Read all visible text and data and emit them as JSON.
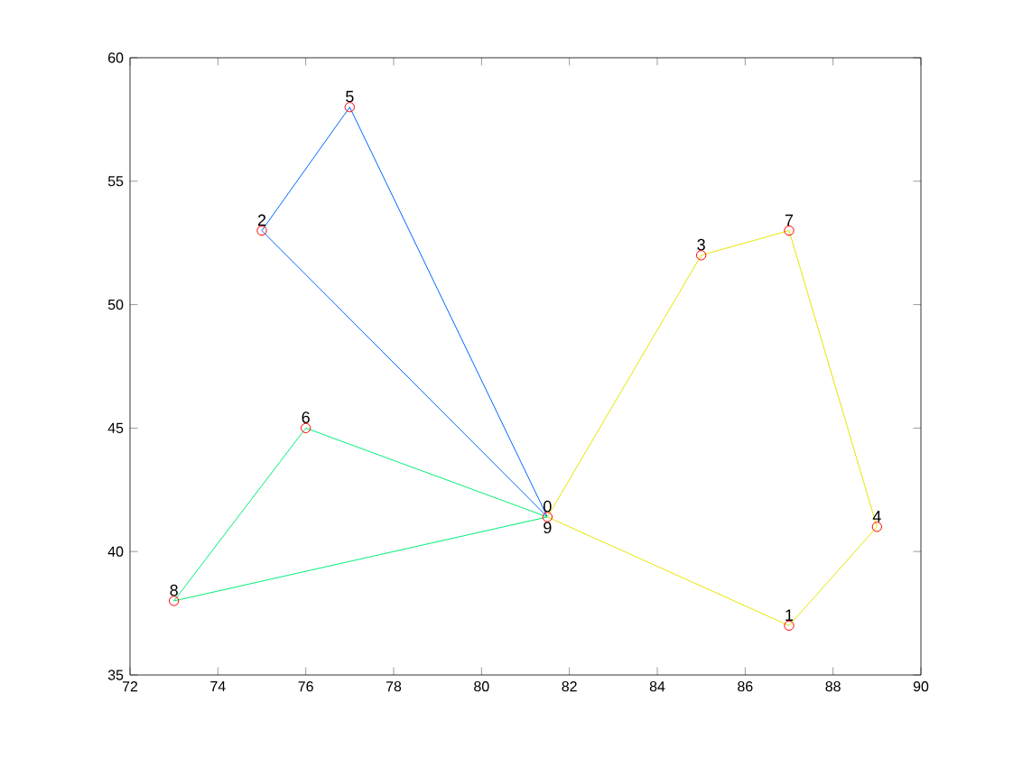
{
  "chart_data": {
    "type": "line",
    "series": [
      {
        "color": "#0066ff",
        "x": [
          75,
          77,
          81.5
        ],
        "values": [
          53,
          58,
          41.4
        ]
      },
      {
        "color": "#0066ff",
        "x": [
          75,
          81.5
        ],
        "values": [
          53,
          41.4
        ]
      },
      {
        "color": "#00ee77",
        "x": [
          73,
          76,
          81.5
        ],
        "values": [
          38,
          45,
          41.4
        ]
      },
      {
        "color": "#00ee77",
        "x": [
          73,
          81.5
        ],
        "values": [
          38,
          41.4
        ]
      },
      {
        "color": "#e6e600",
        "x": [
          81.5,
          85,
          87,
          89
        ],
        "values": [
          41.4,
          52,
          53,
          41
        ]
      },
      {
        "color": "#e6e600",
        "x": [
          81.5,
          87,
          89
        ],
        "values": [
          41.4,
          37,
          41
        ]
      },
      {
        "type": "scatter",
        "marker": "circle",
        "color": "#ff0000",
        "x": [
          81.5,
          87,
          75,
          85,
          89,
          77,
          76,
          87,
          73
        ],
        "values": [
          41.4,
          37,
          53,
          52,
          41,
          58,
          45,
          53,
          38
        ]
      }
    ],
    "annotations": [
      {
        "text": "0",
        "x": 81.5,
        "y": 41.4
      },
      {
        "text": "1",
        "x": 87,
        "y": 37
      },
      {
        "text": "2",
        "x": 75,
        "y": 53
      },
      {
        "text": "3",
        "x": 85,
        "y": 52
      },
      {
        "text": "4",
        "x": 89,
        "y": 41
      },
      {
        "text": "5",
        "x": 77,
        "y": 58
      },
      {
        "text": "6",
        "x": 76,
        "y": 45
      },
      {
        "text": "7",
        "x": 87,
        "y": 53
      },
      {
        "text": "8",
        "x": 73,
        "y": 38
      },
      {
        "text": "9",
        "x": 81.5,
        "y": 41.4
      }
    ],
    "xlim": [
      72,
      90
    ],
    "xticks": [
      72,
      74,
      76,
      78,
      80,
      82,
      84,
      86,
      88,
      90
    ],
    "ylim": [
      35,
      60
    ],
    "yticks": [
      35,
      40,
      45,
      50,
      55,
      60
    ],
    "grid": false
  }
}
